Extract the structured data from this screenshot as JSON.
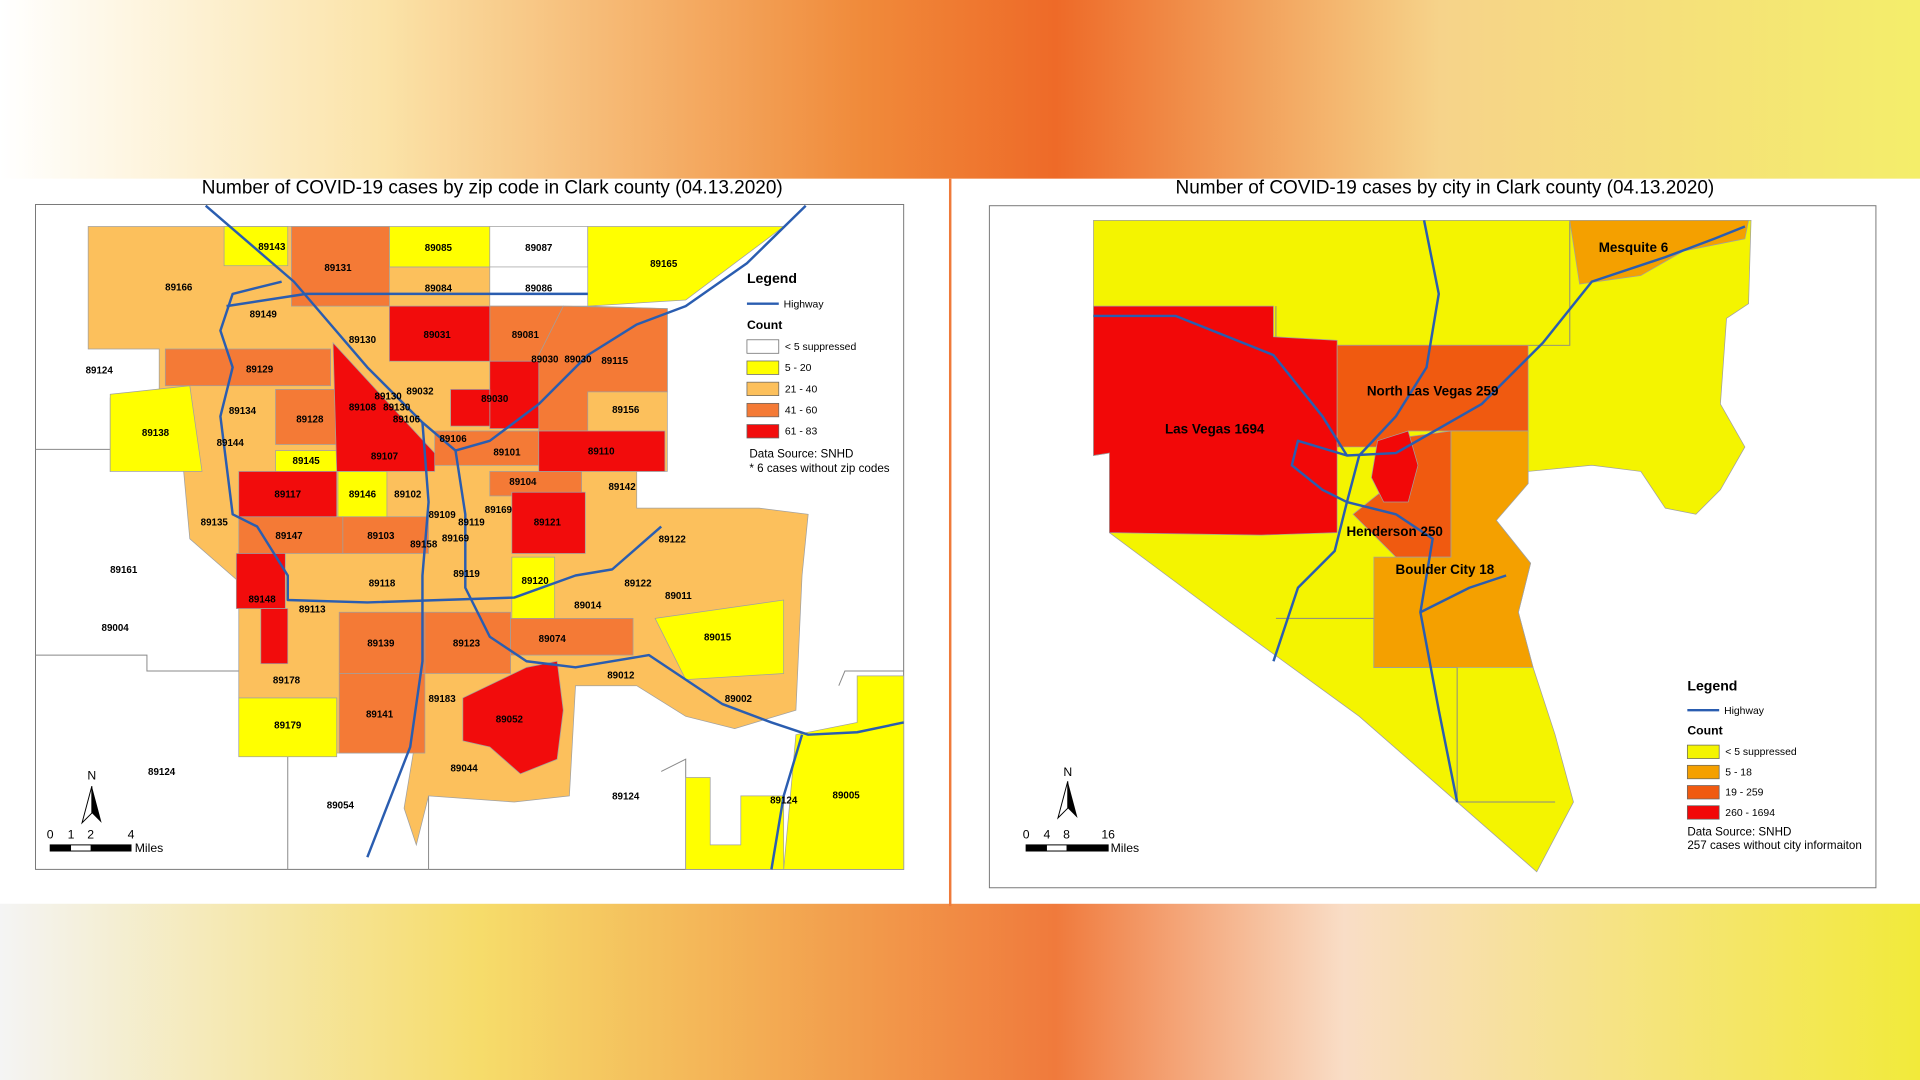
{
  "left_map": {
    "title": "Number of COVID-19 cases by zip code in Clark county (04.13.2020)",
    "zip_labels": [
      "89143",
      "89131",
      "89085",
      "89087",
      "89165",
      "89166",
      "89084",
      "89086",
      "89149",
      "89130",
      "89031",
      "89081",
      "89030",
      "89030",
      "89115",
      "89124",
      "89129",
      "89130",
      "89032",
      "89030",
      "89108",
      "89130",
      "89156",
      "89138",
      "89134",
      "89128",
      "89106",
      "89144",
      "89106",
      "89101",
      "89110",
      "89145",
      "89107",
      "89104",
      "89142",
      "89117",
      "89146",
      "89102",
      "89109",
      "89169",
      "89119",
      "89121",
      "89135",
      "89147",
      "89103",
      "89158",
      "89169",
      "89122",
      "89161",
      "89119",
      "89120",
      "89118",
      "89122",
      "89011",
      "89148",
      "89113",
      "89014",
      "89004",
      "89015",
      "89139",
      "89123",
      "89074",
      "89012",
      "89178",
      "89183",
      "89002",
      "89141",
      "89052",
      "89179",
      "89124",
      "89044",
      "89005",
      "89124",
      "89124",
      "89054"
    ],
    "legend": {
      "title": "Legend",
      "highway": "Highway",
      "count_title": "Count",
      "items": [
        {
          "label": "< 5 suppressed",
          "color": "#ffffff"
        },
        {
          "label": "5 - 20",
          "color": "#ffff00"
        },
        {
          "label": "21 - 40",
          "color": "#fcc05c"
        },
        {
          "label": "41 - 60",
          "color": "#f47a36"
        },
        {
          "label": "61 - 83",
          "color": "#f20c0c"
        }
      ]
    },
    "notes": [
      "Data Source: SNHD",
      "* 6 cases without zip codes"
    ],
    "north": "N",
    "scale_labels": [
      "0",
      "1",
      "2",
      "4"
    ],
    "scale_unit": "Miles"
  },
  "right_map": {
    "title": "Number of COVID-19 cases by city in Clark county (04.13.2020)",
    "city_labels": [
      "Mesquite 6",
      "North Las Vegas 259",
      "Las Vegas 1694",
      "Henderson 250",
      "Boulder City 18"
    ],
    "legend": {
      "title": "Legend",
      "highway": "Highway",
      "count_title": "Count",
      "items": [
        {
          "label": "< 5 suppressed",
          "color": "#f4f400"
        },
        {
          "label": "5 - 18",
          "color": "#f4a000"
        },
        {
          "label": "19 - 259",
          "color": "#f05a10"
        },
        {
          "label": "260 - 1694",
          "color": "#f20808"
        }
      ]
    },
    "notes": [
      "Data Source: SNHD",
      "257 cases without city informaiton"
    ],
    "north": "N",
    "scale_labels": [
      "0",
      "4",
      "8",
      "16"
    ],
    "scale_unit": "Miles"
  }
}
